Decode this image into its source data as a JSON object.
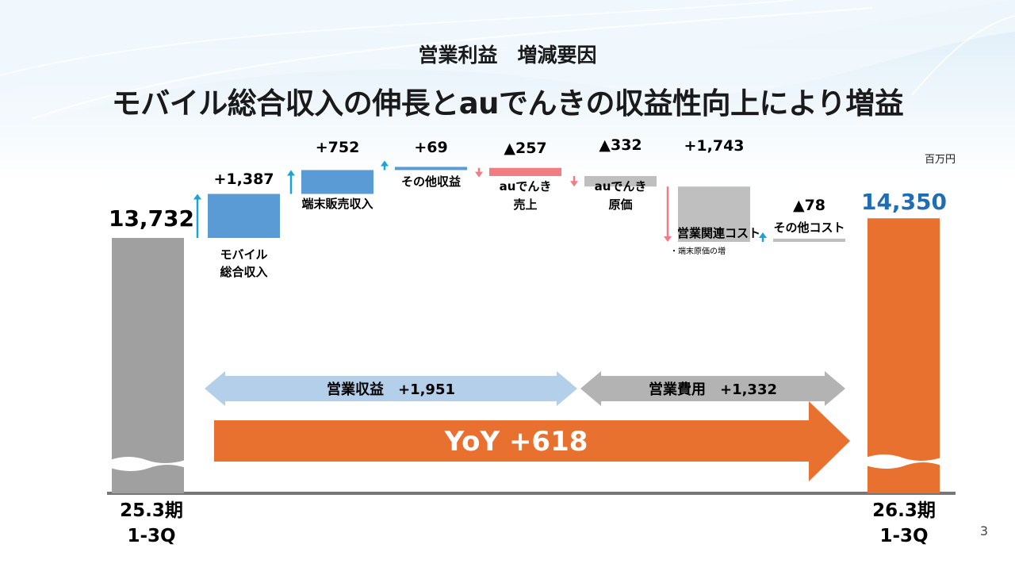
{
  "slide": {
    "subtitle": "営業利益　増減要因",
    "headline": "モバイル総合収入の伸長とauでんきの収益性向上により増益",
    "unit": "百万円",
    "page_number": "3"
  },
  "chart_data": {
    "type": "waterfall",
    "start": {
      "category": [
        "25.3期",
        "1-3Q"
      ],
      "value": 13732,
      "label": "13,732",
      "color": "#a0a0a0"
    },
    "end": {
      "category": [
        "26.3期",
        "1-3Q"
      ],
      "value": 14350,
      "label": "14,350",
      "color": "#e87130",
      "label_color": "#1f6db5"
    },
    "steps": [
      {
        "category": [
          "モバイル",
          "総合収入"
        ],
        "delta": 1387,
        "label": "+1,387",
        "color": "#5b9bd5"
      },
      {
        "category": [
          "端末販売収入"
        ],
        "delta": 752,
        "label": "+752",
        "color": "#5b9bd5"
      },
      {
        "category": [
          "その他収益"
        ],
        "delta": 69,
        "label": "+69",
        "color": "#5b9bd5"
      },
      {
        "category": [
          "auでんき",
          "売上"
        ],
        "delta": -257,
        "label": "▲257",
        "color": "#f07c84"
      },
      {
        "category": [
          "auでんき",
          "原価"
        ],
        "delta": -332,
        "label": "▲332",
        "color": "#bfbfbf"
      },
      {
        "category": [
          "営業関連コスト"
        ],
        "note": "・端末原価の増",
        "delta": 1743,
        "label": "+1,743",
        "color": "#bfbfbf"
      },
      {
        "category": [
          "その他コスト"
        ],
        "delta": -78,
        "label": "▲78",
        "color": "#bfbfbf"
      }
    ],
    "summary_arrows": [
      {
        "label": "営業収益　+1,951",
        "color": "#b4cfea"
      },
      {
        "label": "営業費用　+1,332",
        "color": "#b3b3b3"
      }
    ],
    "yoy": {
      "label": "YoY +618",
      "color": "#e87130"
    },
    "up_arrow_color": "#1aa3d9",
    "down_arrow_color": "#f07c84"
  }
}
